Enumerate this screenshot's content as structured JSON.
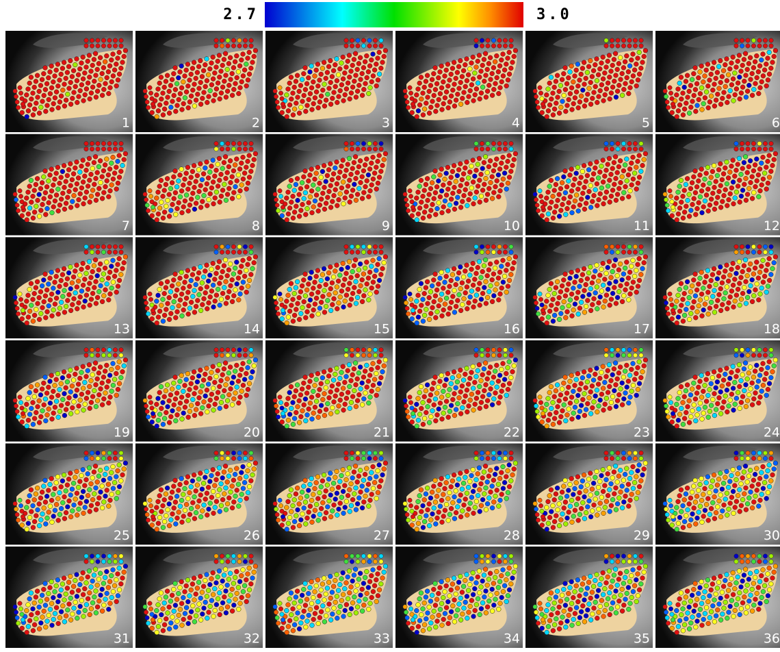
{
  "colorbar": {
    "min_label": "2.7",
    "max_label": "3.0"
  },
  "panels": [
    {
      "label": "1"
    },
    {
      "label": "2"
    },
    {
      "label": "3"
    },
    {
      "label": "4"
    },
    {
      "label": "5"
    },
    {
      "label": "6"
    },
    {
      "label": "7"
    },
    {
      "label": "8"
    },
    {
      "label": "9"
    },
    {
      "label": "10"
    },
    {
      "label": "11"
    },
    {
      "label": "12"
    },
    {
      "label": "13"
    },
    {
      "label": "14"
    },
    {
      "label": "15"
    },
    {
      "label": "16"
    },
    {
      "label": "17"
    },
    {
      "label": "18"
    },
    {
      "label": "19"
    },
    {
      "label": "20"
    },
    {
      "label": "21"
    },
    {
      "label": "22"
    },
    {
      "label": "23"
    },
    {
      "label": "24"
    },
    {
      "label": "25"
    },
    {
      "label": "26"
    },
    {
      "label": "27"
    },
    {
      "label": "28"
    },
    {
      "label": "29"
    },
    {
      "label": "30"
    },
    {
      "label": "31"
    },
    {
      "label": "32"
    },
    {
      "label": "33"
    },
    {
      "label": "34"
    },
    {
      "label": "35"
    },
    {
      "label": "36"
    }
  ]
}
